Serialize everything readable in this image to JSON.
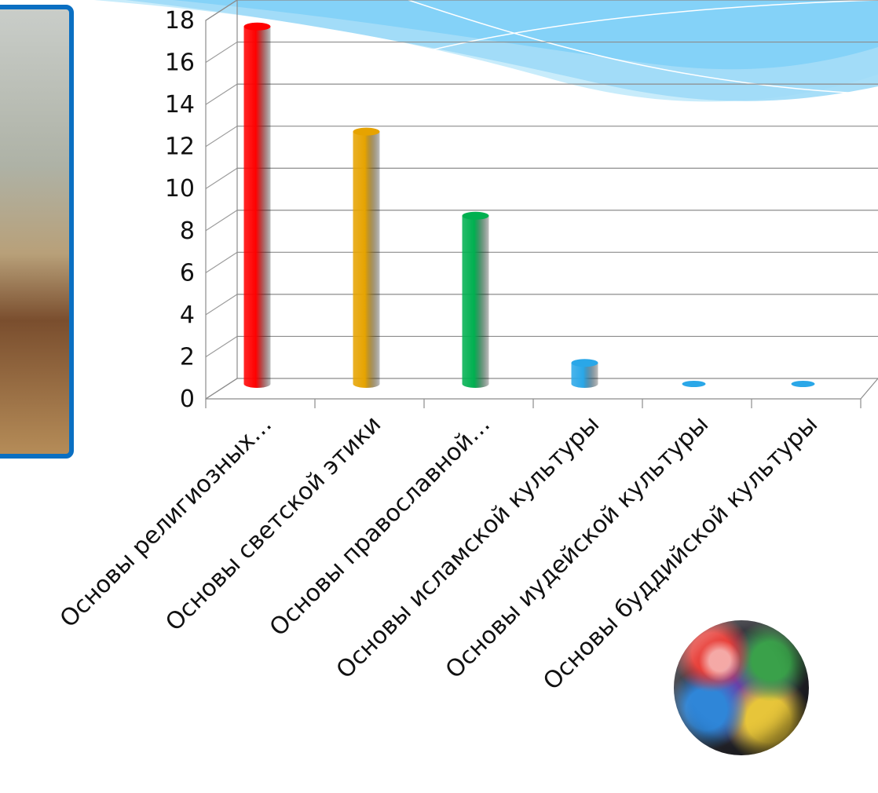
{
  "chart_data": {
    "type": "bar",
    "categories": [
      "Основы религиозных…",
      "Основы светской этики",
      "Основы православной…",
      "Основы исламской культуры",
      "Основы иудейской культуры",
      "Основы буддийской культуры"
    ],
    "values": [
      17,
      12,
      8,
      1,
      0,
      0
    ],
    "colors": [
      "#ff0000",
      "#e6a300",
      "#00b050",
      "#2aa7e8",
      "#2aa7e8",
      "#2aa7e8"
    ],
    "ylim": [
      0,
      18
    ],
    "yticks": [
      "0",
      "2",
      "4",
      "6",
      "8",
      "10",
      "12",
      "14",
      "16",
      "18"
    ],
    "grid": true,
    "legend": "none"
  },
  "decor": {
    "wave_colors": [
      "#7fd0f8",
      "#9ddaf7",
      "#c8ecfb"
    ],
    "frame_color": "#0a6fc2"
  }
}
